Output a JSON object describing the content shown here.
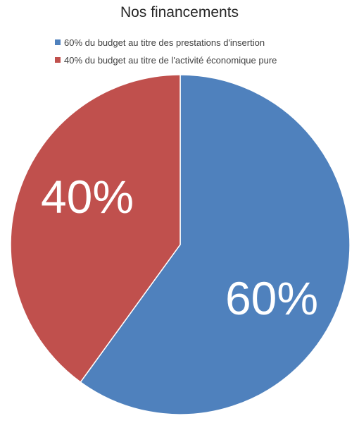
{
  "chart_data": {
    "type": "pie",
    "title": "Nos financements",
    "legend_position": "top",
    "start_angle_deg": 0,
    "direction": "clockwise",
    "slices": [
      {
        "label": "60% du budget au titre des prestations d'insertion",
        "value": 60,
        "data_label": "60%",
        "color": "#4F81BD"
      },
      {
        "label": "40% du budget au titre de l'activité économique pure",
        "value": 40,
        "data_label": "40%",
        "color": "#C0504D"
      }
    ]
  }
}
